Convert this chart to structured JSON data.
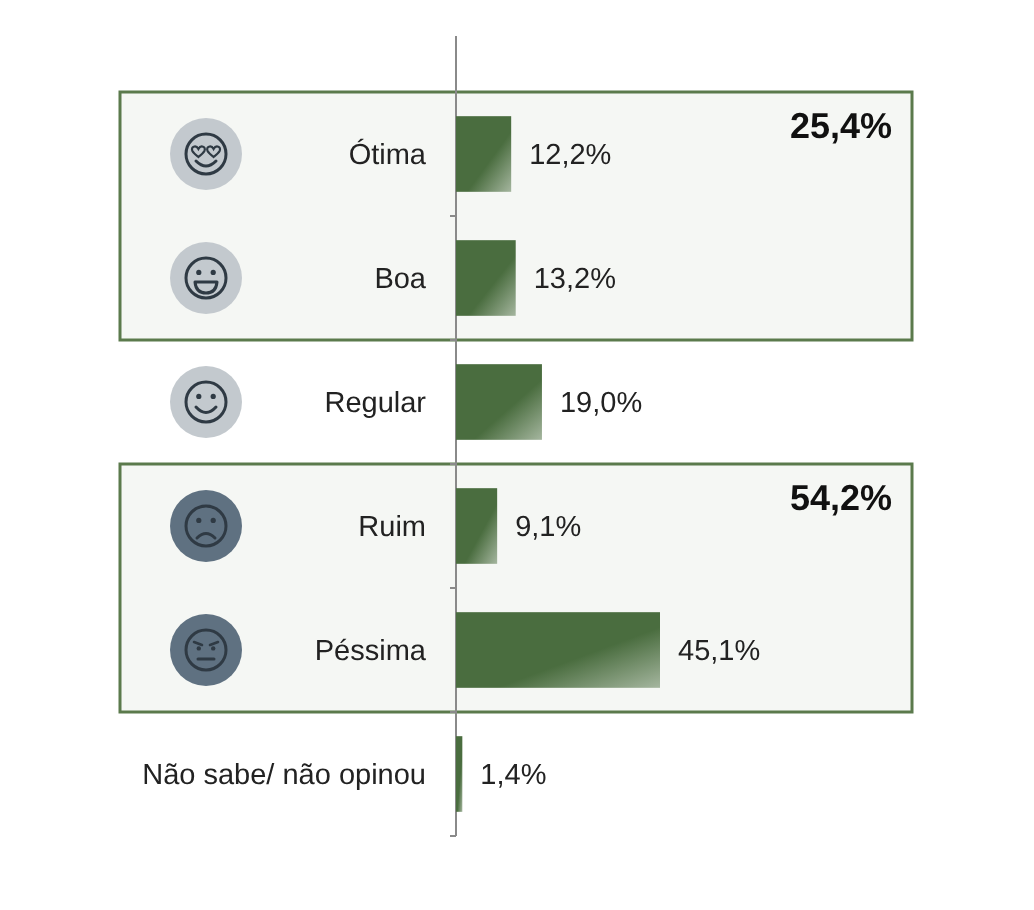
{
  "chart_data": {
    "type": "bar",
    "orientation": "horizontal",
    "categories": [
      "Ótima",
      "Boa",
      "Regular",
      "Ruim",
      "Péssima",
      "Não sabe/ não opinou"
    ],
    "values": [
      12.2,
      13.2,
      19.0,
      9.1,
      45.1,
      1.4
    ],
    "value_labels": [
      "12,2%",
      "13,2%",
      "19,0%",
      "9,1%",
      "45,1%",
      "1,4%"
    ],
    "color": "#4a6d3f",
    "tick_labels": "y",
    "bands": [
      {
        "axis": "y",
        "from": "Ótima",
        "to": "Boa",
        "label": "25,4%",
        "color": "#5b7a4c"
      },
      {
        "axis": "y",
        "from": "Ruim",
        "to": "Péssima",
        "label": "54,2%",
        "color": "#5b7a4c"
      }
    ]
  }
}
